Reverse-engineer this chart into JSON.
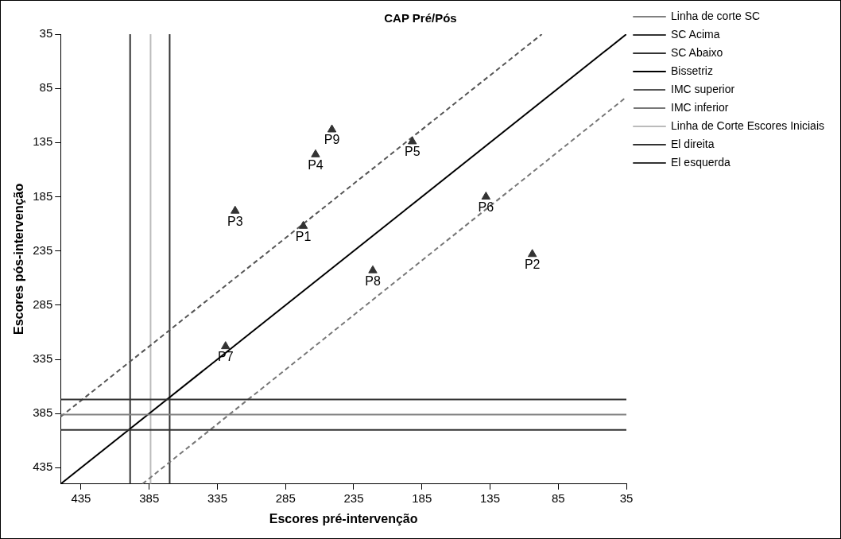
{
  "chart_data": {
    "type": "scatter",
    "title": "CAP Pré/Pós",
    "xlabel": "Escores pré-intervenção",
    "ylabel": "Escores pós-intervenção",
    "xlim": [
      450,
      35
    ],
    "ylim": [
      450,
      35
    ],
    "xticks": [
      435,
      385,
      335,
      285,
      235,
      185,
      135,
      85,
      35
    ],
    "yticks": [
      435,
      385,
      335,
      285,
      235,
      185,
      135,
      85,
      35
    ],
    "grid": false,
    "legend": "top right",
    "series": [
      {
        "type": "scatter",
        "marker": "triangle",
        "color": "#333333",
        "x": [
          272,
          104,
          322,
          263,
          192,
          138,
          329,
          221,
          251
        ],
        "values": [
          212,
          238,
          198,
          146,
          134,
          185,
          323,
          253,
          123
        ]
      },
      {
        "type": "line",
        "name": "Linha de corte SC",
        "color": "#808080",
        "line_style": "solid",
        "x": [
          450,
          35
        ],
        "values": [
          386,
          386
        ]
      },
      {
        "type": "line",
        "name": "SC Acima",
        "color": "#333333",
        "line_style": "solid",
        "x": [
          450,
          35
        ],
        "values": [
          372,
          372
        ]
      },
      {
        "type": "line",
        "name": "SC Abaixo",
        "color": "#333333",
        "line_style": "solid",
        "x": [
          450,
          35
        ],
        "values": [
          400,
          400
        ]
      },
      {
        "type": "line",
        "name": "Bissetriz",
        "color": "#000000",
        "line_style": "solid",
        "x": [
          450,
          35
        ],
        "values": [
          450,
          35
        ]
      },
      {
        "type": "line",
        "name": "IMC superior",
        "color": "#555555",
        "line_style": "dashed",
        "x": [
          450,
          97
        ],
        "values": [
          388,
          35
        ]
      },
      {
        "type": "line",
        "name": "IMC inferior",
        "color": "#777777",
        "line_style": "dashed",
        "x": [
          390,
          35
        ],
        "values": [
          450,
          93
        ]
      },
      {
        "type": "line",
        "name": "Linha de Corte Escores Iniciais",
        "color": "#bbbbbb",
        "line_style": "solid",
        "x": [
          384,
          384
        ],
        "values": [
          450,
          35
        ]
      },
      {
        "type": "line",
        "name": "El direita",
        "color": "#333333",
        "line_style": "solid",
        "x": [
          370,
          370
        ],
        "values": [
          450,
          35
        ]
      },
      {
        "type": "line",
        "name": "El esquerda",
        "color": "#333333",
        "line_style": "solid",
        "x": [
          399,
          399
        ],
        "values": [
          450,
          35
        ]
      }
    ],
    "annotations": [
      {
        "text": "P1",
        "x": 272,
        "y": 212
      },
      {
        "text": "P2",
        "x": 104,
        "y": 238
      },
      {
        "text": "P3",
        "x": 322,
        "y": 198
      },
      {
        "text": "P4",
        "x": 263,
        "y": 146
      },
      {
        "text": "P5",
        "x": 192,
        "y": 134
      },
      {
        "text": "P6",
        "x": 138,
        "y": 185
      },
      {
        "text": "P7",
        "x": 329,
        "y": 323
      },
      {
        "text": "P8",
        "x": 221,
        "y": 253
      },
      {
        "text": "P9",
        "x": 251,
        "y": 123
      }
    ]
  }
}
